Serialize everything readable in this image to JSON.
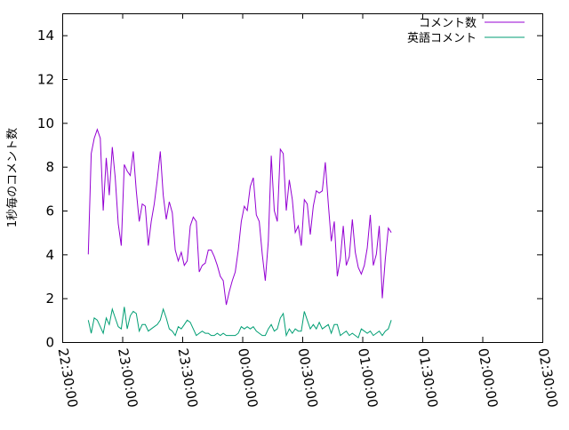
{
  "chart_data": {
    "type": "line",
    "title": "",
    "xlabel": "",
    "ylabel": "1秒毎のコメント数",
    "xlim": [
      "22:30:00",
      "02:30:00"
    ],
    "ylim": [
      0,
      15
    ],
    "x_ticks": [
      "22:30:00",
      "23:00:00",
      "23:30:00",
      "00:00:00",
      "00:30:00",
      "01:00:00",
      "01:30:00",
      "02:00:00",
      "02:30:00"
    ],
    "y_ticks": [
      "0",
      "2",
      "4",
      "6",
      "8",
      "10",
      "12",
      "14"
    ],
    "grid": false,
    "legend_position": "top-right",
    "x_start": "22:43:00",
    "x_step_min": 1.5,
    "series": [
      {
        "name": "コメント数",
        "color": "#9400d3",
        "values": [
          4.0,
          8.6,
          9.3,
          9.7,
          9.3,
          6.0,
          8.4,
          6.7,
          8.9,
          7.5,
          5.4,
          4.4,
          8.1,
          7.8,
          7.6,
          8.7,
          6.9,
          5.5,
          6.3,
          6.2,
          4.4,
          5.5,
          6.3,
          7.4,
          8.7,
          6.7,
          5.6,
          6.4,
          5.9,
          4.2,
          3.7,
          4.1,
          3.5,
          3.7,
          5.3,
          5.7,
          5.5,
          3.2,
          3.5,
          3.6,
          4.2,
          4.2,
          3.9,
          3.5,
          3.0,
          2.8,
          1.7,
          2.3,
          2.8,
          3.2,
          4.2,
          5.5,
          6.2,
          6.0,
          7.1,
          7.5,
          5.8,
          5.5,
          4.0,
          2.8,
          4.6,
          8.5,
          6.0,
          5.5,
          8.8,
          8.6,
          6.0,
          7.4,
          6.5,
          5.0,
          5.3,
          4.4,
          6.5,
          6.3,
          4.9,
          6.2,
          6.9,
          6.8,
          6.9,
          8.2,
          6.3,
          4.6,
          5.5,
          3.0,
          3.8,
          5.3,
          3.5,
          3.9,
          5.6,
          4.1,
          3.4,
          3.1,
          3.5,
          4.3,
          5.8,
          3.5,
          4.0,
          5.3,
          2.0,
          3.8,
          5.2,
          5.0
        ]
      },
      {
        "name": "英語コメント",
        "color": "#009e73",
        "values": [
          1.0,
          0.4,
          1.1,
          1.0,
          0.7,
          0.4,
          1.1,
          0.8,
          1.5,
          1.1,
          0.7,
          0.6,
          1.6,
          0.6,
          1.2,
          1.4,
          1.3,
          0.5,
          0.8,
          0.8,
          0.5,
          0.6,
          0.7,
          0.8,
          1.0,
          1.5,
          1.1,
          0.6,
          0.5,
          0.3,
          0.7,
          0.6,
          0.8,
          1.0,
          0.9,
          0.6,
          0.3,
          0.4,
          0.5,
          0.4,
          0.4,
          0.3,
          0.3,
          0.4,
          0.3,
          0.4,
          0.3,
          0.3,
          0.3,
          0.3,
          0.4,
          0.7,
          0.6,
          0.7,
          0.6,
          0.7,
          0.5,
          0.4,
          0.3,
          0.3,
          0.6,
          0.8,
          0.5,
          0.6,
          1.1,
          1.3,
          0.3,
          0.6,
          0.4,
          0.6,
          0.5,
          0.5,
          1.4,
          1.0,
          0.6,
          0.8,
          0.6,
          0.9,
          0.6,
          0.7,
          0.8,
          0.4,
          0.8,
          0.8,
          0.3,
          0.4,
          0.5,
          0.3,
          0.4,
          0.3,
          0.2,
          0.6,
          0.5,
          0.4,
          0.5,
          0.3,
          0.4,
          0.5,
          0.3,
          0.5,
          0.6,
          1.0
        ]
      }
    ]
  }
}
